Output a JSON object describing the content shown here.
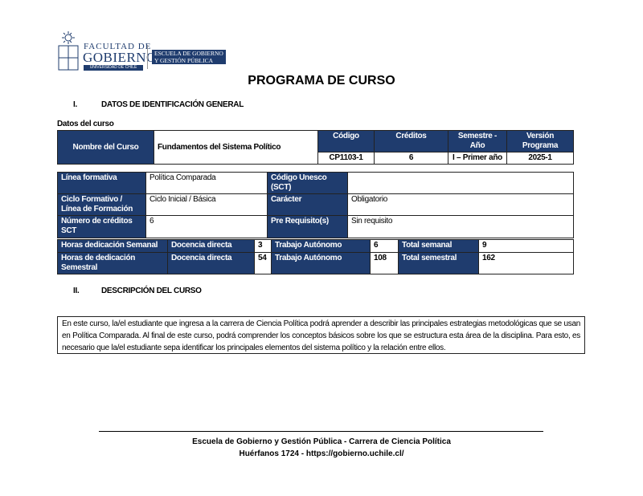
{
  "logo": {
    "line1": "FACULTAD DE",
    "line2": "GOBIERNO",
    "line3": "UNIVERSIDAD DE CHILE",
    "school1": "ESCUELA DE GOBIERNO",
    "school2": "Y GESTIÓN PÚBLICA",
    "color": "#1f3c6e"
  },
  "title": "PROGRAMA DE CURSO",
  "section1": {
    "num": "I.",
    "title": "DATOS DE IDENTIFICACIÓN GENERAL"
  },
  "datos_label": "Datos del curso",
  "course": {
    "name_label": "Nombre del Curso",
    "name": "Fundamentos del Sistema Político",
    "headers": [
      "Código",
      "Créditos",
      "Semestre - Año",
      "Versión Programa"
    ],
    "values": [
      "CP1103-1",
      "6",
      "I – Primer año",
      "2025-1"
    ]
  },
  "info": {
    "linea_label": "Línea formativa",
    "linea": "Política Comparada",
    "unesco_label": "Código Unesco (SCT)",
    "unesco": "",
    "ciclo_label": "Ciclo Formativo / Línea de Formación",
    "ciclo": "Ciclo Inicial / Básica",
    "caracter_label": "Carácter",
    "caracter": "Obligatorio",
    "creditos_label": "Número de créditos SCT",
    "creditos": "6",
    "prereq_label": "Pre Requisito(s)",
    "prereq": "Sin requisito"
  },
  "hours": {
    "weekly_label": "Horas dedicación Semanal",
    "semester_label": "Horas de dedicación Semestral",
    "direct_label": "Docencia directa",
    "auto_label": "Trabajo Autónomo",
    "total_week_label": "Total semanal",
    "total_sem_label": "Total semestral",
    "week": {
      "direct": "3",
      "auto": "6",
      "total": "9"
    },
    "sem": {
      "direct": "54",
      "auto": "108",
      "total": "162"
    }
  },
  "section2": {
    "num": "II.",
    "title": "DESCRIPCIÓN DEL CURSO"
  },
  "description": "En este curso, la/el estudiante que ingresa a la carrera de Ciencia Política podrá aprender a describir las principales estrategias metodológicas que se usan en Política Comparada. Al final de este curso, podrá comprender los conceptos básicos sobre los que se estructura esta área de la disciplina. Para esto, es necesario que la/el estudiante sepa identificar los principales elementos del sistema político y la relación entre ellos.",
  "footer": {
    "line1": "Escuela de Gobierno y Gestión Pública - Carrera de Ciencia Política",
    "line2": "Huérfanos 1724 - https://gobierno.uchile.cl/"
  }
}
